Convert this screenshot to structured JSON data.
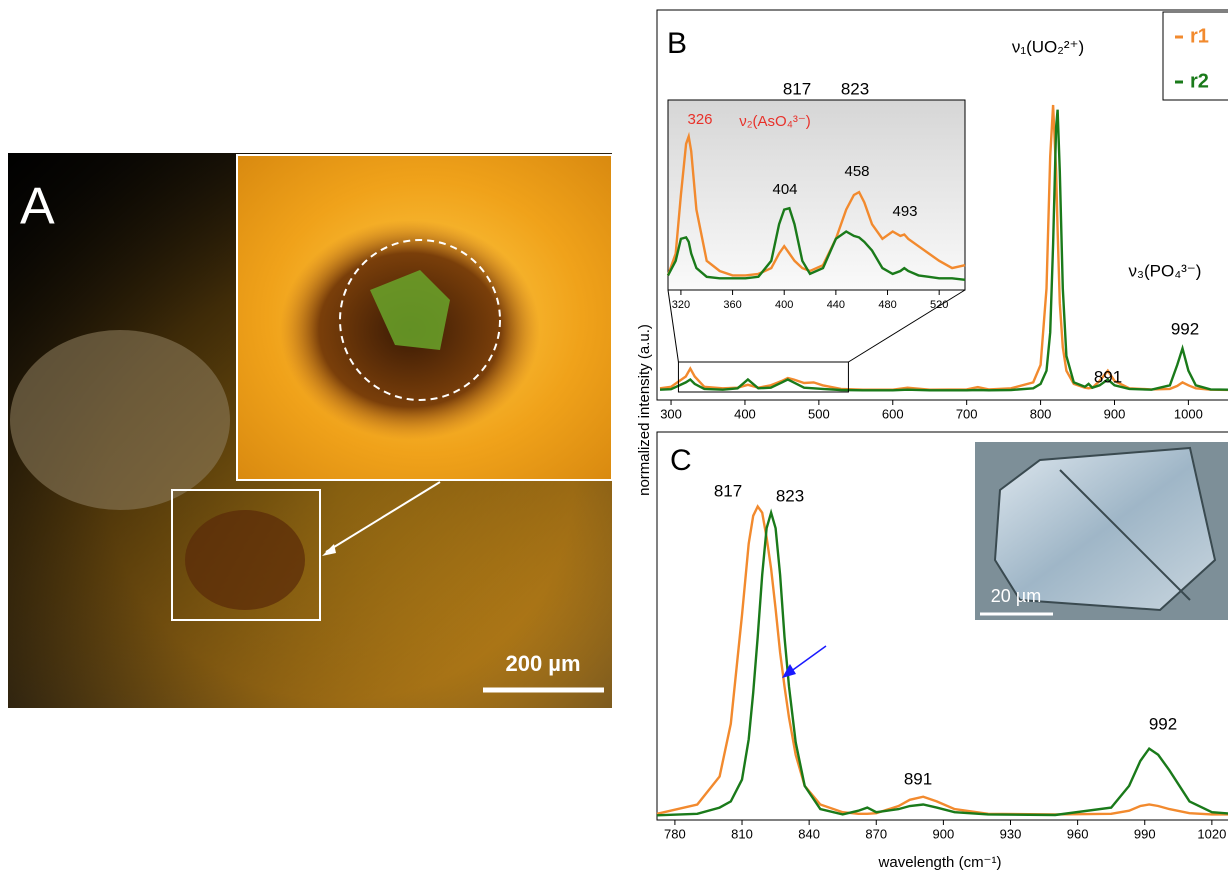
{
  "panel_a": {
    "label": "A",
    "scale_bar": "200 µm"
  },
  "chart_data": [
    {
      "type": "line",
      "label": "B",
      "y_label": "normalized intensity (a.u.)",
      "xlim": [
        281,
        1059
      ],
      "ylim": [
        -0.03,
        1.3
      ],
      "xticks": [
        300,
        400,
        500,
        600,
        700,
        800,
        900,
        1000
      ],
      "legend": "top-right",
      "annotations": [
        {
          "text": "817"
        },
        {
          "text": "823"
        },
        {
          "text": "ν₁(UO₂²⁺)"
        },
        {
          "text": "891"
        },
        {
          "text": "ν₃(PO₄³⁻)"
        },
        {
          "text": "992"
        }
      ],
      "x": [
        285,
        300,
        320,
        326,
        332,
        345,
        370,
        390,
        404,
        418,
        435,
        450,
        458,
        466,
        480,
        493,
        505,
        530,
        560,
        600,
        620,
        650,
        700,
        715,
        730,
        760,
        790,
        800,
        808,
        813,
        817,
        821,
        823,
        826,
        830,
        835,
        845,
        860,
        865,
        870,
        880,
        891,
        900,
        920,
        950,
        975,
        985,
        992,
        1000,
        1010,
        1030,
        1055
      ],
      "series": [
        {
          "name": "r1",
          "color": "#f28a2e",
          "values": [
            0.01,
            0.015,
            0.05,
            0.077,
            0.05,
            0.015,
            0.01,
            0.012,
            0.022,
            0.012,
            0.02,
            0.035,
            0.045,
            0.04,
            0.028,
            0.03,
            0.02,
            0.008,
            0.005,
            0.005,
            0.012,
            0.005,
            0.006,
            0.014,
            0.006,
            0.01,
            0.03,
            0.09,
            0.35,
            0.8,
            0.976,
            0.75,
            0.55,
            0.3,
            0.15,
            0.07,
            0.025,
            0.012,
            0.01,
            0.012,
            0.035,
            0.07,
            0.035,
            0.01,
            0.006,
            0.008,
            0.018,
            0.03,
            0.02,
            0.01,
            0.005,
            0.004
          ]
        },
        {
          "name": "r2",
          "color": "#1a7a1a",
          "values": [
            0.005,
            0.007,
            0.03,
            0.04,
            0.025,
            0.008,
            0.005,
            0.01,
            0.04,
            0.01,
            0.012,
            0.03,
            0.04,
            0.03,
            0.012,
            0.01,
            0.008,
            0.004,
            0.003,
            0.003,
            0.005,
            0.003,
            0.003,
            0.004,
            0.003,
            0.004,
            0.01,
            0.025,
            0.07,
            0.2,
            0.5,
            0.9,
            0.96,
            0.75,
            0.35,
            0.12,
            0.03,
            0.015,
            0.025,
            0.012,
            0.02,
            0.04,
            0.02,
            0.008,
            0.005,
            0.02,
            0.09,
            0.146,
            0.07,
            0.02,
            0.006,
            0.005
          ]
        }
      ]
    },
    {
      "type": "line",
      "xlim": [
        310,
        540
      ],
      "ylim": [
        -0.05,
        1.25
      ],
      "xticks": [
        320,
        360,
        400,
        440,
        480,
        520
      ],
      "annotations": [
        {
          "text": "326",
          "color": "#e8312a"
        },
        {
          "text": "ν₂(AsO₄³⁻)",
          "color": "#e8312a"
        },
        {
          "text": "404"
        },
        {
          "text": "458"
        },
        {
          "text": "493"
        }
      ],
      "x": [
        310,
        316,
        320,
        324,
        326,
        328,
        332,
        340,
        350,
        360,
        370,
        380,
        390,
        396,
        400,
        404,
        408,
        414,
        420,
        430,
        440,
        448,
        454,
        458,
        462,
        468,
        476,
        484,
        490,
        493,
        496,
        504,
        512,
        520,
        530,
        540
      ],
      "series": [
        {
          "name": "r1",
          "color": "#f28a2e",
          "values": [
            0.05,
            0.2,
            0.6,
            0.95,
            1.0,
            0.9,
            0.5,
            0.15,
            0.08,
            0.05,
            0.05,
            0.06,
            0.1,
            0.2,
            0.25,
            0.2,
            0.15,
            0.1,
            0.08,
            0.12,
            0.3,
            0.5,
            0.6,
            0.62,
            0.55,
            0.4,
            0.3,
            0.35,
            0.32,
            0.33,
            0.3,
            0.25,
            0.2,
            0.15,
            0.1,
            0.12
          ]
        },
        {
          "name": "r2",
          "color": "#1a7a1a",
          "values": [
            0.05,
            0.15,
            0.3,
            0.31,
            0.28,
            0.2,
            0.1,
            0.04,
            0.03,
            0.03,
            0.03,
            0.04,
            0.15,
            0.4,
            0.5,
            0.51,
            0.4,
            0.15,
            0.06,
            0.1,
            0.3,
            0.35,
            0.32,
            0.31,
            0.28,
            0.22,
            0.1,
            0.06,
            0.08,
            0.1,
            0.08,
            0.05,
            0.04,
            0.03,
            0.03,
            0.02
          ]
        }
      ]
    },
    {
      "type": "line",
      "label": "C",
      "x_label": "wavelength (cm⁻¹)",
      "inset_scale_bar": "20 µm",
      "xlim": [
        772,
        1029
      ],
      "ylim": [
        -0.01,
        1.24
      ],
      "xticks": [
        780,
        810,
        840,
        870,
        900,
        930,
        960,
        990,
        1020
      ],
      "annotations": [
        {
          "text": "817"
        },
        {
          "text": "823"
        },
        {
          "text": "891"
        },
        {
          "text": "992"
        }
      ],
      "x": [
        772,
        790,
        800,
        805,
        810,
        813,
        815,
        817,
        819,
        821,
        823,
        825,
        827,
        829,
        831,
        834,
        838,
        845,
        855,
        862,
        866,
        870,
        880,
        885,
        891,
        897,
        905,
        920,
        950,
        975,
        983,
        988,
        992,
        996,
        1001,
        1010,
        1020,
        1029
      ],
      "series": [
        {
          "name": "r1",
          "color": "#f28a2e",
          "values": [
            0.01,
            0.04,
            0.13,
            0.3,
            0.65,
            0.88,
            0.97,
            1.0,
            0.98,
            0.9,
            0.8,
            0.67,
            0.53,
            0.42,
            0.32,
            0.2,
            0.1,
            0.04,
            0.015,
            0.01,
            0.01,
            0.012,
            0.035,
            0.055,
            0.065,
            0.05,
            0.025,
            0.01,
            0.008,
            0.01,
            0.02,
            0.035,
            0.04,
            0.035,
            0.025,
            0.012,
            0.008,
            0.008
          ]
        },
        {
          "name": "r2",
          "color": "#1a7a1a",
          "values": [
            0.005,
            0.01,
            0.03,
            0.05,
            0.12,
            0.25,
            0.4,
            0.58,
            0.78,
            0.93,
            0.98,
            0.93,
            0.78,
            0.58,
            0.42,
            0.24,
            0.1,
            0.025,
            0.008,
            0.02,
            0.03,
            0.015,
            0.025,
            0.035,
            0.04,
            0.03,
            0.015,
            0.008,
            0.006,
            0.03,
            0.1,
            0.18,
            0.22,
            0.2,
            0.15,
            0.05,
            0.015,
            0.01
          ]
        }
      ]
    }
  ]
}
